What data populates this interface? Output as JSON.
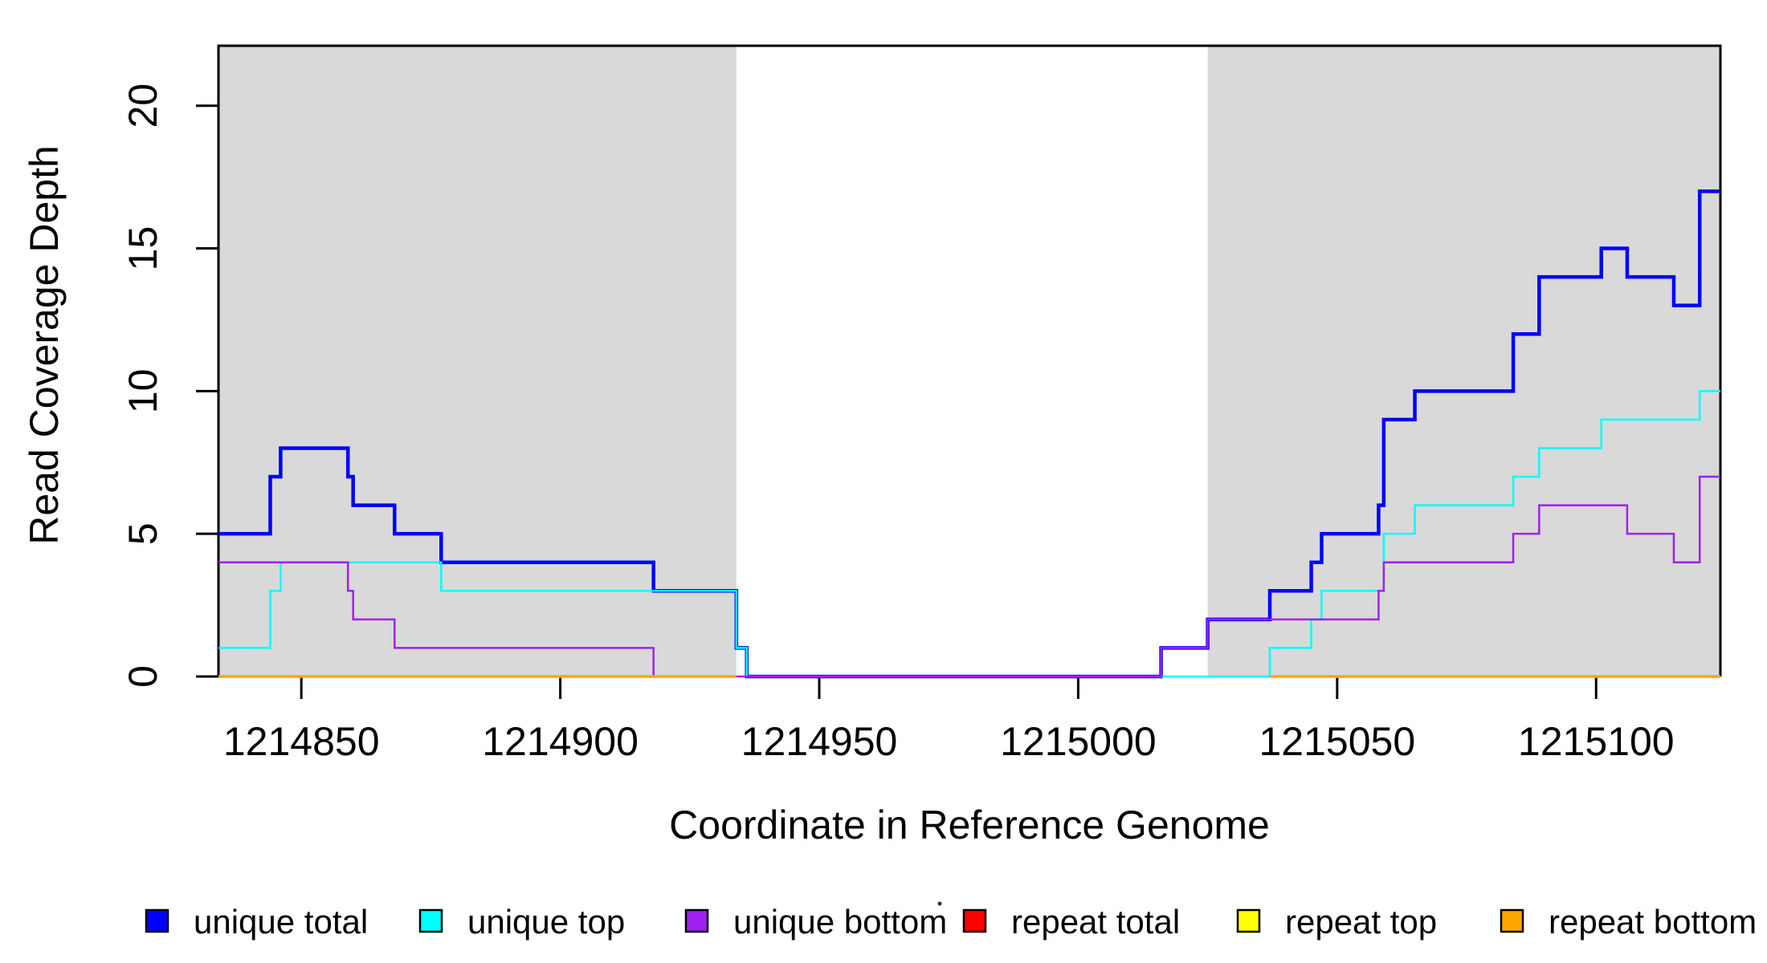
{
  "chart_data": {
    "type": "line",
    "style": "step",
    "title": "",
    "xlabel": "Coordinate in Reference Genome",
    "ylabel": "Read Coverage Depth",
    "xlim": [
      1214834,
      1215124
    ],
    "ylim": [
      0,
      22.1
    ],
    "xticks": [
      1214850,
      1214900,
      1214950,
      1215000,
      1215050,
      1215100
    ],
    "yticks": [
      0,
      5,
      10,
      15,
      20
    ],
    "grid": false,
    "legend_position": "bottom",
    "background_bands": {
      "color": "#D9D9D9",
      "meaning": "shaded genome intervals",
      "regions": [
        [
          1214834,
          1214934
        ],
        [
          1215025,
          1215124
        ]
      ]
    },
    "series": [
      {
        "name": "unique total",
        "color": "#0000FF",
        "line_width": 4.5,
        "segments": [
          {
            "steps": [
              [
                1214834,
                5
              ],
              [
                1214844,
                7
              ],
              [
                1214846,
                8
              ],
              [
                1214859,
                7
              ],
              [
                1214860,
                6
              ],
              [
                1214868,
                5
              ],
              [
                1214877,
                4
              ],
              [
                1214918,
                3
              ],
              [
                1214934,
                1
              ],
              [
                1214936,
                0
              ],
              [
                1215016,
                1
              ],
              [
                1215025,
                2
              ],
              [
                1215037,
                3
              ],
              [
                1215045,
                4
              ],
              [
                1215047,
                5
              ],
              [
                1215058,
                6
              ],
              [
                1215059,
                9
              ],
              [
                1215065,
                10
              ],
              [
                1215084,
                12
              ],
              [
                1215089,
                14
              ],
              [
                1215101,
                15
              ],
              [
                1215106,
                14
              ],
              [
                1215115,
                13
              ],
              [
                1215120,
                17
              ]
            ],
            "end": 1215124
          }
        ]
      },
      {
        "name": "unique top",
        "color": "#00FFFF",
        "line_width": 2.5,
        "segments": [
          {
            "steps": [
              [
                1214834,
                1
              ],
              [
                1214844,
                3
              ],
              [
                1214846,
                4
              ],
              [
                1214877,
                3
              ],
              [
                1214934,
                1
              ],
              [
                1214936,
                0
              ],
              [
                1215037,
                1
              ],
              [
                1215045,
                2
              ],
              [
                1215047,
                3
              ],
              [
                1215059,
                5
              ],
              [
                1215065,
                6
              ],
              [
                1215084,
                7
              ],
              [
                1215089,
                8
              ],
              [
                1215101,
                9
              ],
              [
                1215120,
                10
              ]
            ],
            "end": 1215124
          }
        ]
      },
      {
        "name": "unique bottom",
        "color": "#A020F0",
        "line_width": 2.5,
        "segments": [
          {
            "steps": [
              [
                1214834,
                4
              ],
              [
                1214859,
                3
              ],
              [
                1214860,
                2
              ],
              [
                1214868,
                1
              ],
              [
                1214918,
                0
              ],
              [
                1215016,
                1
              ],
              [
                1215025,
                2
              ],
              [
                1215058,
                3
              ],
              [
                1215059,
                4
              ],
              [
                1215084,
                5
              ],
              [
                1215089,
                6
              ],
              [
                1215106,
                5
              ],
              [
                1215115,
                4
              ],
              [
                1215120,
                7
              ]
            ],
            "end": 1215124
          }
        ]
      },
      {
        "name": "repeat total",
        "color": "#FF0000",
        "line_width": 2.5,
        "segments": [
          {
            "steps": [
              [
                1214834,
                0
              ]
            ],
            "end": 1214934
          },
          {
            "steps": [
              [
                1215025,
                0
              ]
            ],
            "end": 1215124
          }
        ]
      },
      {
        "name": "repeat top",
        "color": "#FFFF00",
        "line_width": 2.5,
        "segments": [
          {
            "steps": [
              [
                1214834,
                0
              ]
            ],
            "end": 1214934
          },
          {
            "steps": [
              [
                1215025,
                0
              ]
            ],
            "end": 1215124
          }
        ]
      },
      {
        "name": "repeat bottom",
        "color": "#FFA500",
        "line_width": 3.5,
        "segments": [
          {
            "steps": [
              [
                1214834,
                0
              ]
            ],
            "end": 1214934
          },
          {
            "steps": [
              [
                1215037,
                0
              ]
            ],
            "end": 1215124
          }
        ]
      }
    ],
    "legend": {
      "entries": [
        {
          "label": "unique total",
          "color": "#0000FF"
        },
        {
          "label": "unique top",
          "color": "#00FFFF"
        },
        {
          "label": "unique bottom",
          "color": "#A020F0"
        },
        {
          "label": "repeat total",
          "color": "#FF0000"
        },
        {
          "label": "repeat top",
          "color": "#FFFF00"
        },
        {
          "label": "repeat bottom",
          "color": "#FFA500"
        }
      ]
    }
  }
}
